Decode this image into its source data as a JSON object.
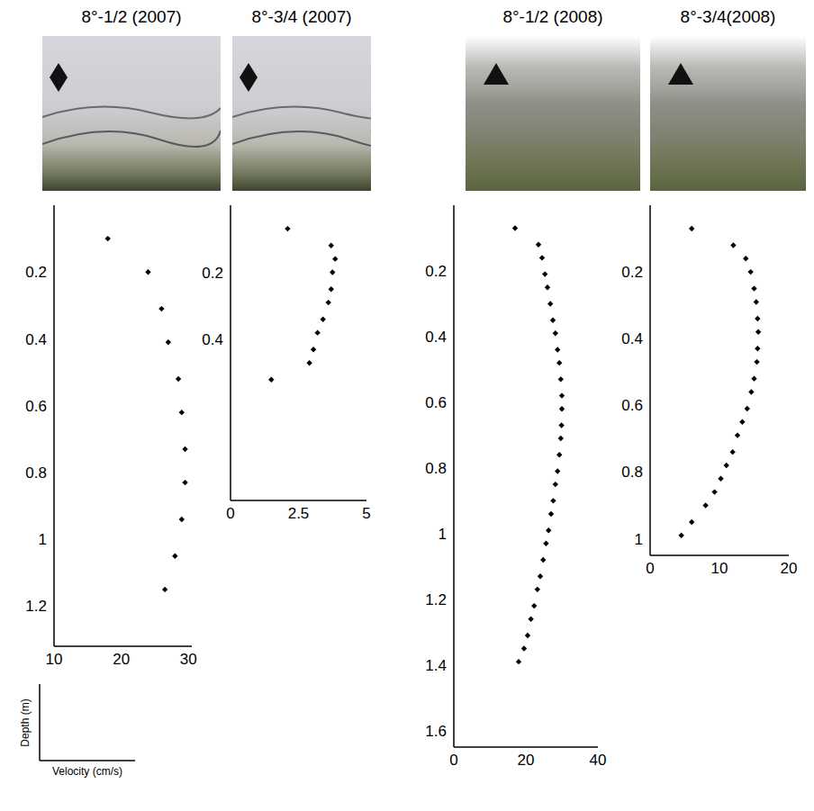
{
  "chart_data": [
    {
      "type": "scatter",
      "title": "8°-1/2 (2007)",
      "marker": "diamond",
      "color": "#000000",
      "x": [
        18,
        24,
        26,
        27,
        28.5,
        29,
        29.5,
        29.5,
        29,
        28,
        26.5
      ],
      "y": [
        0.1,
        0.2,
        0.31,
        0.41,
        0.52,
        0.62,
        0.73,
        0.83,
        0.94,
        1.05,
        1.15
      ],
      "xlim": [
        10,
        30.5
      ],
      "xticks": [
        10,
        20,
        30
      ],
      "ylim": [
        0,
        1.32
      ],
      "yticks": [
        0.2,
        0.4,
        0.6,
        0.8,
        1,
        1.2
      ]
    },
    {
      "type": "scatter",
      "title": "8°-3/4 (2007)",
      "marker": "diamond",
      "color": "#000000",
      "x": [
        2.1,
        3.7,
        3.85,
        3.75,
        3.7,
        3.6,
        3.4,
        3.2,
        3.05,
        2.9,
        1.5
      ],
      "y": [
        0.07,
        0.12,
        0.16,
        0.2,
        0.25,
        0.29,
        0.34,
        0.38,
        0.43,
        0.47,
        0.52
      ],
      "xlim": [
        0,
        5
      ],
      "xticks": [
        0,
        2.5,
        5
      ],
      "ylim": [
        0,
        0.88
      ],
      "yticks": [
        0.2,
        0.4
      ]
    },
    {
      "type": "scatter",
      "title": "8°-1/2 (2008)",
      "marker": "diamond",
      "color": "#000000",
      "x": [
        17,
        23.5,
        24.5,
        25.3,
        26,
        26.8,
        27.5,
        28.2,
        28.8,
        29.3,
        29.7,
        30,
        30,
        29.9,
        29.7,
        29.3,
        28.8,
        28.2,
        27.6,
        27,
        26.3,
        25.6,
        24.8,
        24,
        23.2,
        22.3,
        21.4,
        20.5,
        19.5,
        18
      ],
      "y": [
        0.07,
        0.12,
        0.16,
        0.21,
        0.25,
        0.3,
        0.35,
        0.39,
        0.44,
        0.48,
        0.53,
        0.58,
        0.62,
        0.67,
        0.71,
        0.76,
        0.81,
        0.85,
        0.9,
        0.94,
        0.99,
        1.03,
        1.08,
        1.13,
        1.17,
        1.22,
        1.26,
        1.31,
        1.35,
        1.39
      ],
      "xlim": [
        0,
        40
      ],
      "xticks": [
        0,
        20,
        40
      ],
      "ylim": [
        0,
        1.65
      ],
      "yticks": [
        0.2,
        0.4,
        0.6,
        0.8,
        1,
        1.2,
        1.4,
        1.6
      ]
    },
    {
      "type": "scatter",
      "title": "8°-3/4(2008)",
      "marker": "diamond",
      "color": "#000000",
      "x": [
        6,
        12,
        13.8,
        14.5,
        15,
        15.3,
        15.5,
        15.6,
        15.5,
        15.4,
        15,
        14.6,
        14,
        13.3,
        12.6,
        11.9,
        11,
        10.2,
        9.3,
        8,
        6,
        4.5
      ],
      "y": [
        0.07,
        0.12,
        0.16,
        0.2,
        0.25,
        0.29,
        0.34,
        0.38,
        0.43,
        0.47,
        0.52,
        0.56,
        0.61,
        0.65,
        0.69,
        0.74,
        0.78,
        0.82,
        0.86,
        0.9,
        0.95,
        0.99
      ],
      "xlim": [
        0,
        20
      ],
      "xticks": [
        0,
        10,
        20
      ],
      "ylim": [
        0,
        1.05
      ],
      "yticks": [
        0.2,
        0.4,
        0.6,
        0.8,
        1
      ]
    }
  ],
  "axis_key": {
    "xlabel": "Velocity (cm/s)",
    "ylabel": "Depth (m)"
  }
}
